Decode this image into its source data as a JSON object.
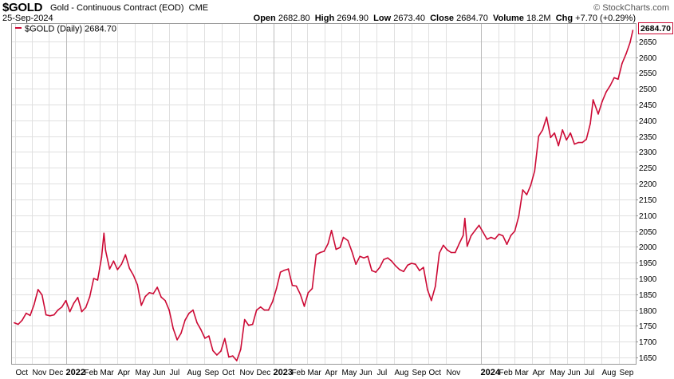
{
  "header": {
    "symbol": "$GOLD",
    "name": "Gold - Continuous Contract (EOD)",
    "exchange": "CME",
    "brand": "© StockCharts.com",
    "date": "25-Sep-2024",
    "open_label": "Open",
    "open_value": "2682.80",
    "high_label": "High",
    "high_value": "2694.90",
    "low_label": "Low",
    "low_value": "2673.40",
    "close_label": "Close",
    "close_value": "2684.70",
    "volume_label": "Volume",
    "volume_value": "18.2M",
    "chg_label": "Chg",
    "chg_value": "+7.70 (+0.29%)"
  },
  "legend": {
    "label": "$GOLD (Daily) 2684.70",
    "position": "top-left"
  },
  "last_price_label": "2684.70",
  "colors": {
    "line": "#cc0a35",
    "grid": "#e0e0e0",
    "frame": "#999999",
    "year_line": "#bbbbbb"
  },
  "chart_data": {
    "type": "line",
    "series": [
      {
        "name": "$GOLD (Daily)",
        "x": [
          "2021-10-01",
          "2021-10-08",
          "2021-10-15",
          "2021-10-22",
          "2021-10-29",
          "2021-11-05",
          "2021-11-12",
          "2021-11-19",
          "2021-11-26",
          "2021-12-03",
          "2021-12-10",
          "2021-12-17",
          "2021-12-24",
          "2021-12-31",
          "2022-01-07",
          "2022-01-14",
          "2022-01-21",
          "2022-01-28",
          "2022-02-04",
          "2022-02-11",
          "2022-02-18",
          "2022-02-25",
          "2022-03-04",
          "2022-03-08",
          "2022-03-11",
          "2022-03-18",
          "2022-03-25",
          "2022-04-01",
          "2022-04-08",
          "2022-04-15",
          "2022-04-22",
          "2022-04-29",
          "2022-05-06",
          "2022-05-13",
          "2022-05-20",
          "2022-05-27",
          "2022-06-03",
          "2022-06-10",
          "2022-06-17",
          "2022-06-24",
          "2022-07-01",
          "2022-07-08",
          "2022-07-15",
          "2022-07-22",
          "2022-07-29",
          "2022-08-05",
          "2022-08-12",
          "2022-08-19",
          "2022-08-26",
          "2022-09-02",
          "2022-09-09",
          "2022-09-16",
          "2022-09-23",
          "2022-09-30",
          "2022-10-07",
          "2022-10-14",
          "2022-10-21",
          "2022-10-28",
          "2022-11-04",
          "2022-11-11",
          "2022-11-18",
          "2022-11-25",
          "2022-12-02",
          "2022-12-09",
          "2022-12-16",
          "2022-12-23",
          "2022-12-30",
          "2023-01-06",
          "2023-01-13",
          "2023-01-20",
          "2023-01-27",
          "2023-02-03",
          "2023-02-10",
          "2023-02-17",
          "2023-02-24",
          "2023-03-03",
          "2023-03-10",
          "2023-03-17",
          "2023-03-24",
          "2023-03-31",
          "2023-04-07",
          "2023-04-13",
          "2023-04-21",
          "2023-04-28",
          "2023-05-04",
          "2023-05-12",
          "2023-05-19",
          "2023-05-26",
          "2023-06-02",
          "2023-06-09",
          "2023-06-16",
          "2023-06-23",
          "2023-06-30",
          "2023-07-07",
          "2023-07-14",
          "2023-07-21",
          "2023-07-28",
          "2023-08-04",
          "2023-08-11",
          "2023-08-18",
          "2023-08-25",
          "2023-09-01",
          "2023-09-08",
          "2023-09-15",
          "2023-09-22",
          "2023-09-29",
          "2023-10-06",
          "2023-10-13",
          "2023-10-20",
          "2023-10-27",
          "2023-11-03",
          "2023-11-10",
          "2023-11-17",
          "2023-11-24",
          "2023-12-01",
          "2023-12-04",
          "2023-12-08",
          "2023-12-15",
          "2023-12-22",
          "2023-12-29",
          "2024-01-05",
          "2024-01-12",
          "2024-01-19",
          "2024-01-26",
          "2024-02-02",
          "2024-02-09",
          "2024-02-16",
          "2024-02-23",
          "2024-03-01",
          "2024-03-08",
          "2024-03-15",
          "2024-03-22",
          "2024-03-29",
          "2024-04-05",
          "2024-04-12",
          "2024-04-19",
          "2024-04-26",
          "2024-05-03",
          "2024-05-10",
          "2024-05-17",
          "2024-05-24",
          "2024-05-31",
          "2024-06-07",
          "2024-06-14",
          "2024-06-21",
          "2024-06-28",
          "2024-07-05",
          "2024-07-12",
          "2024-07-17",
          "2024-07-26",
          "2024-08-02",
          "2024-08-09",
          "2024-08-16",
          "2024-08-23",
          "2024-08-30",
          "2024-09-06",
          "2024-09-13",
          "2024-09-20",
          "2024-09-25"
        ],
        "values": [
          1760,
          1755,
          1768,
          1790,
          1783,
          1818,
          1865,
          1848,
          1785,
          1782,
          1785,
          1800,
          1810,
          1830,
          1795,
          1822,
          1840,
          1795,
          1808,
          1842,
          1900,
          1895,
          1968,
          2043,
          1988,
          1930,
          1955,
          1928,
          1945,
          1975,
          1932,
          1910,
          1880,
          1815,
          1843,
          1855,
          1852,
          1872,
          1841,
          1830,
          1800,
          1742,
          1706,
          1727,
          1768,
          1790,
          1800,
          1760,
          1738,
          1711,
          1718,
          1672,
          1658,
          1670,
          1710,
          1652,
          1655,
          1640,
          1676,
          1770,
          1752,
          1755,
          1800,
          1810,
          1800,
          1800,
          1826,
          1868,
          1920,
          1926,
          1930,
          1878,
          1876,
          1850,
          1812,
          1855,
          1868,
          1975,
          1982,
          1986,
          2010,
          2052,
          1992,
          1998,
          2030,
          2020,
          1985,
          1945,
          1970,
          1965,
          1970,
          1925,
          1920,
          1935,
          1960,
          1965,
          1955,
          1940,
          1928,
          1922,
          1942,
          1948,
          1945,
          1925,
          1935,
          1865,
          1830,
          1875,
          1980,
          2005,
          1990,
          1982,
          1982,
          2010,
          2036,
          2090,
          2002,
          2035,
          2052,
          2068,
          2046,
          2024,
          2030,
          2025,
          2040,
          2035,
          2008,
          2036,
          2050,
          2097,
          2180,
          2165,
          2195,
          2240,
          2350,
          2370,
          2410,
          2346,
          2360,
          2320,
          2370,
          2338,
          2360,
          2325,
          2330,
          2330,
          2340,
          2390,
          2465,
          2420,
          2460,
          2490,
          2510,
          2535,
          2530,
          2580,
          2610,
          2646,
          2684.7
        ]
      }
    ],
    "ylim": [
      1630,
      2705
    ],
    "xlim": [
      "2021-09-27",
      "2024-09-30"
    ],
    "y_ticks": [
      1650,
      1700,
      1750,
      1800,
      1850,
      1900,
      1950,
      2000,
      2050,
      2100,
      2150,
      2200,
      2250,
      2300,
      2350,
      2400,
      2450,
      2500,
      2550,
      2600,
      2650
    ],
    "y_axis_side": "right",
    "x_ticks": [
      {
        "label": "Oct",
        "date": "2021-10-03",
        "year": false
      },
      {
        "label": "Nov",
        "date": "2021-11-01",
        "year": false
      },
      {
        "label": "Dec",
        "date": "2021-12-01",
        "year": false
      },
      {
        "label": "2022",
        "date": "2022-01-01",
        "year": true
      },
      {
        "label": "Feb",
        "date": "2022-02-01",
        "year": false
      },
      {
        "label": "Mar",
        "date": "2022-03-01",
        "year": false
      },
      {
        "label": "Apr",
        "date": "2022-04-01",
        "year": false
      },
      {
        "label": "May",
        "date": "2022-05-01",
        "year": false
      },
      {
        "label": "Jun",
        "date": "2022-06-01",
        "year": false
      },
      {
        "label": "Jul",
        "date": "2022-07-01",
        "year": false
      },
      {
        "label": "Aug",
        "date": "2022-08-01",
        "year": false
      },
      {
        "label": "Sep",
        "date": "2022-09-01",
        "year": false
      },
      {
        "label": "Oct",
        "date": "2022-10-01",
        "year": false
      },
      {
        "label": "Nov",
        "date": "2022-11-01",
        "year": false
      },
      {
        "label": "Dec",
        "date": "2022-12-01",
        "year": false
      },
      {
        "label": "2023",
        "date": "2023-01-01",
        "year": true
      },
      {
        "label": "Feb",
        "date": "2023-02-01",
        "year": false
      },
      {
        "label": "Mar",
        "date": "2023-03-01",
        "year": false
      },
      {
        "label": "Apr",
        "date": "2023-04-01",
        "year": false
      },
      {
        "label": "May",
        "date": "2023-05-01",
        "year": false
      },
      {
        "label": "Jun",
        "date": "2023-06-01",
        "year": false
      },
      {
        "label": "Jul",
        "date": "2023-07-01",
        "year": false
      },
      {
        "label": "Aug",
        "date": "2023-08-01",
        "year": false
      },
      {
        "label": "Sep",
        "date": "2023-09-01",
        "year": false
      },
      {
        "label": "Oct",
        "date": "2023-10-01",
        "year": false
      },
      {
        "label": "Nov",
        "date": "2023-11-01",
        "year": false
      },
      {
        "label": "2024",
        "date": "2024-01-01",
        "year": true
      },
      {
        "label": "Feb",
        "date": "2024-02-01",
        "year": false
      },
      {
        "label": "Mar",
        "date": "2024-03-01",
        "year": false
      },
      {
        "label": "Apr",
        "date": "2024-04-01",
        "year": false
      },
      {
        "label": "May",
        "date": "2024-05-01",
        "year": false
      },
      {
        "label": "Jun",
        "date": "2024-06-01",
        "year": false
      },
      {
        "label": "Jul",
        "date": "2024-07-01",
        "year": false
      },
      {
        "label": "Aug",
        "date": "2024-08-01",
        "year": false
      },
      {
        "label": "Sep",
        "date": "2024-09-01",
        "year": false
      }
    ],
    "grid": true,
    "title": "$GOLD Gold - Continuous Contract (EOD) CME",
    "xlabel": "",
    "ylabel": ""
  }
}
